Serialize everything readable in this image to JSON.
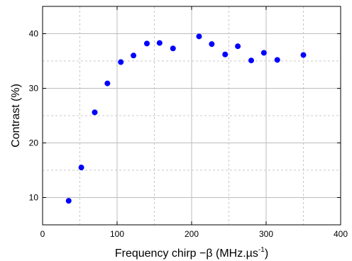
{
  "chart_data": {
    "type": "scatter",
    "title": "",
    "xlabel_main": "Frequency chirp ",
    "xlabel_symbol": "−β",
    "xlabel_unit": " (MHz.µs",
    "xlabel_sup": "-1",
    "xlabel_close": ")",
    "ylabel": "Contrast (%)",
    "xlim": [
      0,
      400
    ],
    "ylim": [
      5,
      45
    ],
    "x_ticks": [
      0,
      100,
      200,
      300,
      400
    ],
    "y_ticks": [
      10,
      20,
      30,
      40
    ],
    "x_gridlines": [
      50,
      100,
      150,
      200,
      250,
      300,
      350
    ],
    "y_gridlines": [
      10,
      15,
      20,
      25,
      30,
      35,
      40
    ],
    "grid": true,
    "marker_color": "#0000ff",
    "points": [
      {
        "x": 35,
        "y": 9.4
      },
      {
        "x": 52,
        "y": 15.5
      },
      {
        "x": 70,
        "y": 25.6
      },
      {
        "x": 87,
        "y": 30.9
      },
      {
        "x": 105,
        "y": 34.8
      },
      {
        "x": 122,
        "y": 36.0
      },
      {
        "x": 140,
        "y": 38.2
      },
      {
        "x": 157,
        "y": 38.3
      },
      {
        "x": 175,
        "y": 37.3
      },
      {
        "x": 210,
        "y": 39.5
      },
      {
        "x": 227,
        "y": 38.1
      },
      {
        "x": 245,
        "y": 36.2
      },
      {
        "x": 262,
        "y": 37.7
      },
      {
        "x": 280,
        "y": 35.1
      },
      {
        "x": 297,
        "y": 36.5
      },
      {
        "x": 315,
        "y": 35.2
      },
      {
        "x": 350,
        "y": 36.1
      }
    ]
  }
}
